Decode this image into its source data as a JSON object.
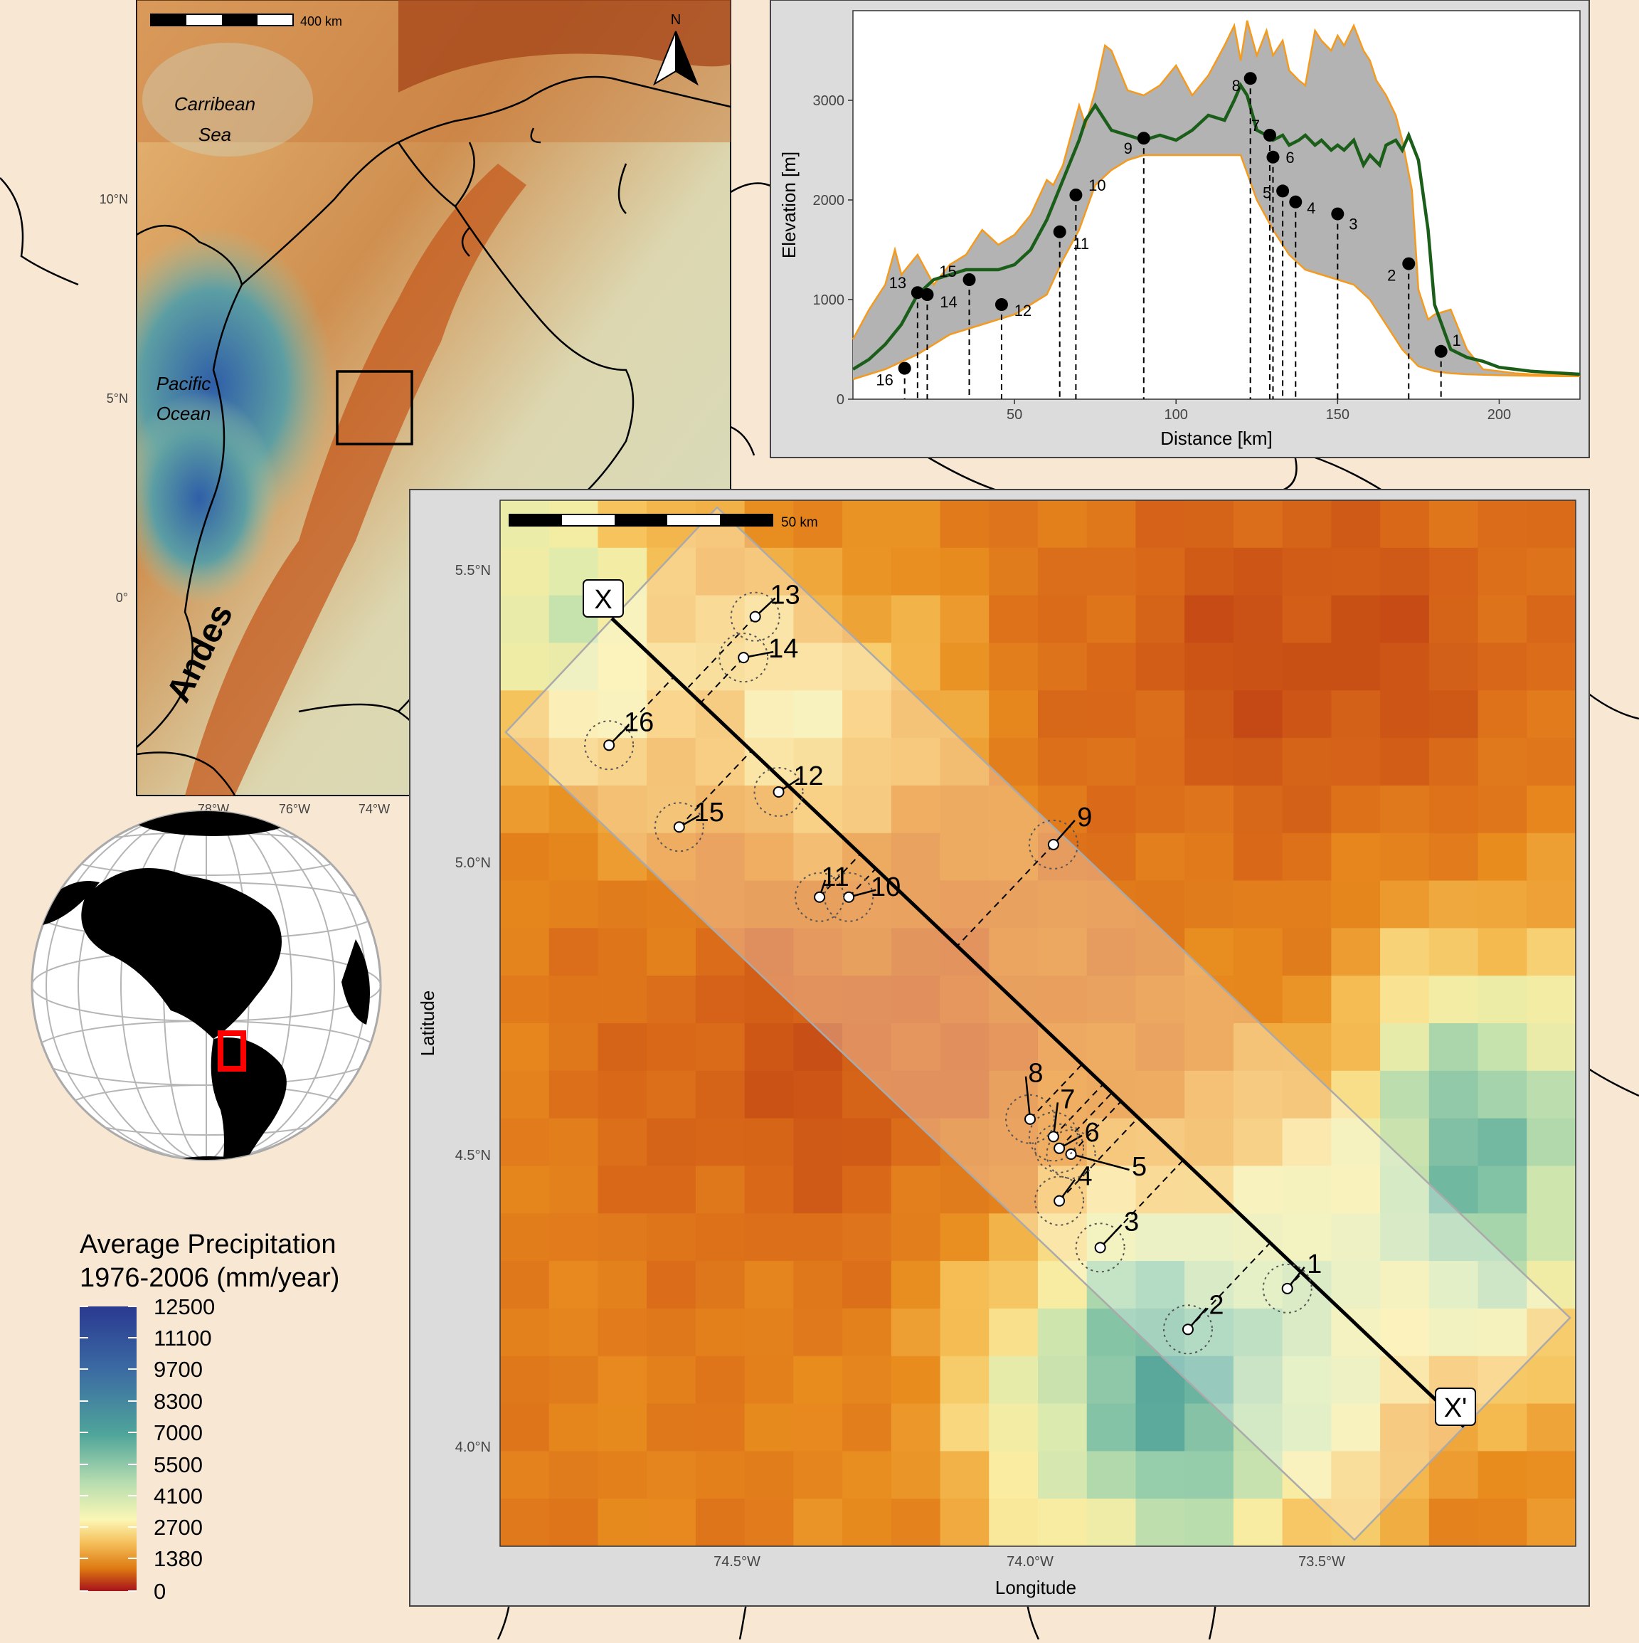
{
  "colors": {
    "land": "#f8e7d3",
    "panel_bg": "#dcdcdc",
    "profile_fill": "#b3b3b3",
    "profile_edge": "#f39a1f",
    "profile_mean": "#1a5e1a",
    "globe_highlight": "#ff0000"
  },
  "overview_map": {
    "scalebar_label": "400 km",
    "north_label": "N",
    "labels": {
      "caribbean_1": "Carribean",
      "caribbean_2": "Sea",
      "pacific_1": "Pacific",
      "pacific_2": "Ocean",
      "andes": "Andes"
    },
    "lat_ticks": [
      "10°N",
      "5°N",
      "0°"
    ],
    "lon_ticks": [
      "78°W",
      "76°W",
      "74°W"
    ]
  },
  "profile_chart": {
    "xlabel": "Distance [km]",
    "ylabel": "Elevation [m]",
    "x_ticks": [
      "50",
      "100",
      "150",
      "200"
    ],
    "y_ticks": [
      "0",
      "1000",
      "2000",
      "3000"
    ]
  },
  "chart_data": {
    "type": "area",
    "xlabel": "Distance [km]",
    "ylabel": "Elevation [m]",
    "xlim": [
      0,
      225
    ],
    "ylim": [
      0,
      3900
    ],
    "series": [
      {
        "name": "",
        "role": "max_elevation",
        "x": [
          0,
          5,
          10,
          13,
          15,
          20,
          25,
          30,
          35,
          40,
          45,
          50,
          55,
          60,
          62,
          65,
          70,
          72,
          75,
          78,
          80,
          85,
          90,
          95,
          100,
          105,
          110,
          115,
          118,
          120,
          122,
          125,
          128,
          130,
          133,
          135,
          138,
          140,
          143,
          145,
          148,
          150,
          152,
          155,
          158,
          160,
          162,
          165,
          168,
          170,
          173,
          175,
          178,
          180,
          185,
          190,
          195,
          200,
          205,
          210,
          215,
          220,
          225
        ],
        "y": [
          600,
          900,
          1150,
          1500,
          1250,
          1450,
          1150,
          1350,
          1450,
          1700,
          1550,
          1650,
          1850,
          2200,
          2150,
          2350,
          2950,
          2750,
          3100,
          3550,
          3500,
          3100,
          3050,
          3150,
          3350,
          3050,
          3250,
          3550,
          3750,
          3400,
          3800,
          3450,
          3700,
          3450,
          3600,
          3300,
          3200,
          3150,
          3700,
          3600,
          3500,
          3650,
          3550,
          3750,
          3500,
          3400,
          3200,
          3050,
          2850,
          2600,
          2100,
          1100,
          800,
          850,
          900,
          500,
          300,
          280,
          260,
          250,
          245,
          240,
          240
        ]
      },
      {
        "name": "",
        "role": "mean_elevation",
        "x": [
          0,
          5,
          10,
          15,
          20,
          25,
          30,
          35,
          40,
          45,
          50,
          55,
          60,
          65,
          70,
          72,
          75,
          78,
          80,
          85,
          90,
          95,
          100,
          105,
          110,
          115,
          118,
          120,
          122,
          125,
          128,
          130,
          133,
          135,
          138,
          140,
          143,
          145,
          148,
          150,
          152,
          155,
          158,
          160,
          163,
          165,
          168,
          170,
          172,
          175,
          178,
          180,
          185,
          190,
          195,
          200,
          205,
          210,
          215,
          220,
          225
        ],
        "y": [
          300,
          400,
          550,
          750,
          1050,
          1200,
          1250,
          1300,
          1300,
          1300,
          1350,
          1500,
          1800,
          2200,
          2600,
          2800,
          2950,
          2800,
          2700,
          2650,
          2600,
          2650,
          2600,
          2700,
          2850,
          2800,
          3000,
          3150,
          3050,
          2700,
          2650,
          2600,
          2650,
          2550,
          2600,
          2650,
          2550,
          2600,
          2500,
          2550,
          2500,
          2600,
          2350,
          2450,
          2350,
          2550,
          2600,
          2500,
          2650,
          2400,
          1700,
          950,
          500,
          420,
          380,
          320,
          300,
          280,
          270,
          260,
          250
        ]
      },
      {
        "name": "",
        "role": "min_elevation",
        "x": [
          0,
          10,
          20,
          30,
          40,
          50,
          60,
          65,
          70,
          75,
          80,
          85,
          90,
          95,
          100,
          110,
          115,
          120,
          125,
          130,
          135,
          140,
          145,
          150,
          155,
          160,
          165,
          170,
          175,
          180,
          185,
          190,
          200,
          210,
          220,
          225
        ],
        "y": [
          200,
          300,
          450,
          650,
          750,
          850,
          1050,
          1400,
          1700,
          2150,
          2300,
          2400,
          2450,
          2450,
          2450,
          2450,
          2450,
          2450,
          2000,
          1700,
          1450,
          1300,
          1250,
          1200,
          1150,
          1000,
          750,
          500,
          330,
          280,
          260,
          250,
          240,
          235,
          230,
          230
        ]
      }
    ],
    "points": [
      {
        "id": "1",
        "x": 182,
        "y": 480
      },
      {
        "id": "2",
        "x": 172,
        "y": 1360
      },
      {
        "id": "3",
        "x": 150,
        "y": 1860
      },
      {
        "id": "4",
        "x": 137,
        "y": 1980
      },
      {
        "id": "5",
        "x": 133,
        "y": 2090
      },
      {
        "id": "6",
        "x": 130,
        "y": 2430
      },
      {
        "id": "7",
        "x": 129,
        "y": 2650
      },
      {
        "id": "8",
        "x": 123,
        "y": 3220
      },
      {
        "id": "9",
        "x": 90,
        "y": 2620
      },
      {
        "id": "10",
        "x": 69,
        "y": 2050
      },
      {
        "id": "11",
        "x": 64,
        "y": 1680
      },
      {
        "id": "12",
        "x": 46,
        "y": 950
      },
      {
        "id": "13",
        "x": 20,
        "y": 1070
      },
      {
        "id": "14",
        "x": 23,
        "y": 1050
      },
      {
        "id": "15",
        "x": 36,
        "y": 1200
      },
      {
        "id": "16",
        "x": 16,
        "y": 310
      }
    ]
  },
  "detail_map": {
    "scalebar_label": "50 km",
    "xlabel": "Longitude",
    "ylabel": "Latitude",
    "lon_ticks": [
      "74.5°W",
      "74.0°W",
      "73.5°W"
    ],
    "lat_ticks": [
      "5.5°N",
      "5.0°N",
      "4.5°N",
      "4.0°N"
    ],
    "transect_start": "X",
    "transect_end": "X'",
    "stations": [
      {
        "id": "1",
        "lon": -73.56,
        "lat": 4.27
      },
      {
        "id": "2",
        "lon": -73.73,
        "lat": 4.2
      },
      {
        "id": "3",
        "lon": -73.88,
        "lat": 4.34
      },
      {
        "id": "4",
        "lon": -73.95,
        "lat": 4.42
      },
      {
        "id": "5",
        "lon": -73.93,
        "lat": 4.5
      },
      {
        "id": "6",
        "lon": -73.95,
        "lat": 4.51
      },
      {
        "id": "7",
        "lon": -73.96,
        "lat": 4.53
      },
      {
        "id": "8",
        "lon": -74.0,
        "lat": 4.56
      },
      {
        "id": "9",
        "lon": -73.96,
        "lat": 5.03
      },
      {
        "id": "10",
        "lon": -74.31,
        "lat": 4.94
      },
      {
        "id": "11",
        "lon": -74.36,
        "lat": 4.94
      },
      {
        "id": "12",
        "lon": -74.43,
        "lat": 5.12
      },
      {
        "id": "13",
        "lon": -74.47,
        "lat": 5.42
      },
      {
        "id": "14",
        "lon": -74.49,
        "lat": 5.35
      },
      {
        "id": "15",
        "lon": -74.6,
        "lat": 5.06
      },
      {
        "id": "16",
        "lon": -74.72,
        "lat": 5.2
      }
    ]
  },
  "legend": {
    "title_1": "Average Precipitation",
    "title_2": "1976-2006 (mm/year)",
    "ticks": [
      "12500",
      "11100",
      "9700",
      "8300",
      "7000",
      "5500",
      "4100",
      "2700",
      "1380",
      "0"
    ]
  }
}
